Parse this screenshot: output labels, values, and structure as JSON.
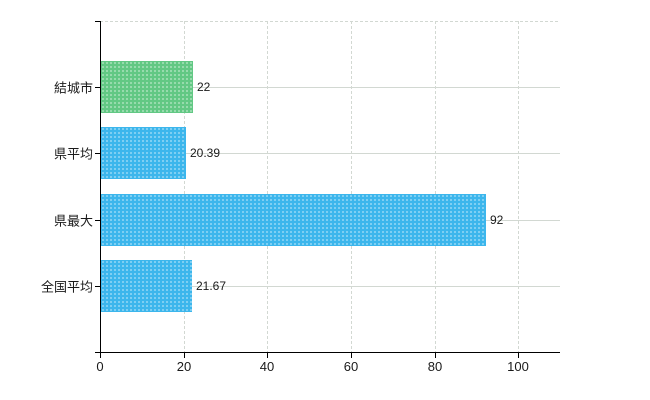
{
  "chart_data": {
    "type": "bar",
    "orientation": "horizontal",
    "title": "",
    "xlabel": "",
    "ylabel": "",
    "categories": [
      "結城市",
      "県平均",
      "県最大",
      "全国平均"
    ],
    "values": [
      22,
      20.39,
      92,
      21.67
    ],
    "value_labels": [
      "22",
      "20.39",
      "92",
      "21.67"
    ],
    "bar_colors": [
      "#62c884",
      "#3cb6ec",
      "#3cb6ec",
      "#3cb6ec"
    ],
    "x_tick_values": [
      0,
      20,
      40,
      60,
      80,
      100
    ],
    "x_tick_labels": [
      "0",
      "20",
      "40",
      "60",
      "80",
      "100"
    ],
    "xlim": [
      0,
      110
    ],
    "grid": true,
    "legend_position": "none"
  },
  "colors": {
    "bar_green": "#62c884",
    "bar_blue": "#3cb6ec",
    "gridline": "#d2d8d2",
    "axis": "#000000",
    "text": "#1a1a1a",
    "background": "#ffffff"
  }
}
